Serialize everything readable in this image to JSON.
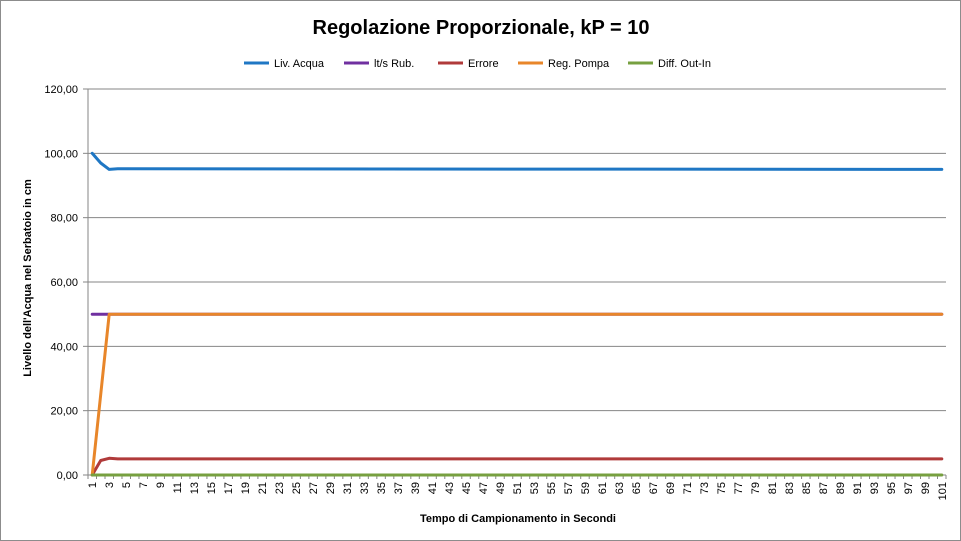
{
  "chart_data": {
    "type": "line",
    "title": "Regolazione Proporzionale, kP = 10",
    "xlabel": "Tempo di Campionamento in Secondi",
    "ylabel": "Livello dell'Acqua nel Serbatoio in cm",
    "ylim": [
      0,
      120
    ],
    "y_ticks": [
      "0,00",
      "20,00",
      "40,00",
      "60,00",
      "80,00",
      "100,00",
      "120,00"
    ],
    "x_range": [
      1,
      101
    ],
    "x_ticks_labeled": [
      "1",
      "3",
      "5",
      "7",
      "9",
      "11",
      "13",
      "15",
      "17",
      "19",
      "21",
      "23",
      "25",
      "27",
      "29",
      "31",
      "33",
      "35",
      "37",
      "39",
      "41",
      "43",
      "45",
      "47",
      "49",
      "51",
      "53",
      "55",
      "57",
      "59",
      "61",
      "63",
      "65",
      "67",
      "69",
      "71",
      "73",
      "75",
      "77",
      "79",
      "81",
      "83",
      "85",
      "87",
      "89",
      "91",
      "93",
      "95",
      "97",
      "99",
      "101"
    ],
    "grid": "horizontal",
    "legend_position": "top",
    "series": [
      {
        "name": "Liv. Acqua",
        "color": "#1f77c4",
        "points": [
          [
            1,
            100
          ],
          [
            2,
            97
          ],
          [
            3,
            95
          ],
          [
            4,
            95.2
          ],
          [
            101,
            95
          ]
        ]
      },
      {
        "name": "lt/s Rub.",
        "color": "#7030a0",
        "points": [
          [
            1,
            50
          ],
          [
            2,
            50
          ],
          [
            101,
            50
          ]
        ]
      },
      {
        "name": "Errore",
        "color": "#b03a3a",
        "points": [
          [
            1,
            0
          ],
          [
            2,
            4.5
          ],
          [
            3,
            5.2
          ],
          [
            4,
            5
          ],
          [
            101,
            5
          ]
        ]
      },
      {
        "name": "Reg. Pompa",
        "color": "#e8862a",
        "points": [
          [
            1,
            0
          ],
          [
            2,
            25
          ],
          [
            3,
            50
          ],
          [
            101,
            50
          ]
        ]
      },
      {
        "name": "Diff.  Out-In",
        "color": "#77a040",
        "points": [
          [
            1,
            0
          ],
          [
            101,
            0
          ]
        ]
      }
    ]
  }
}
